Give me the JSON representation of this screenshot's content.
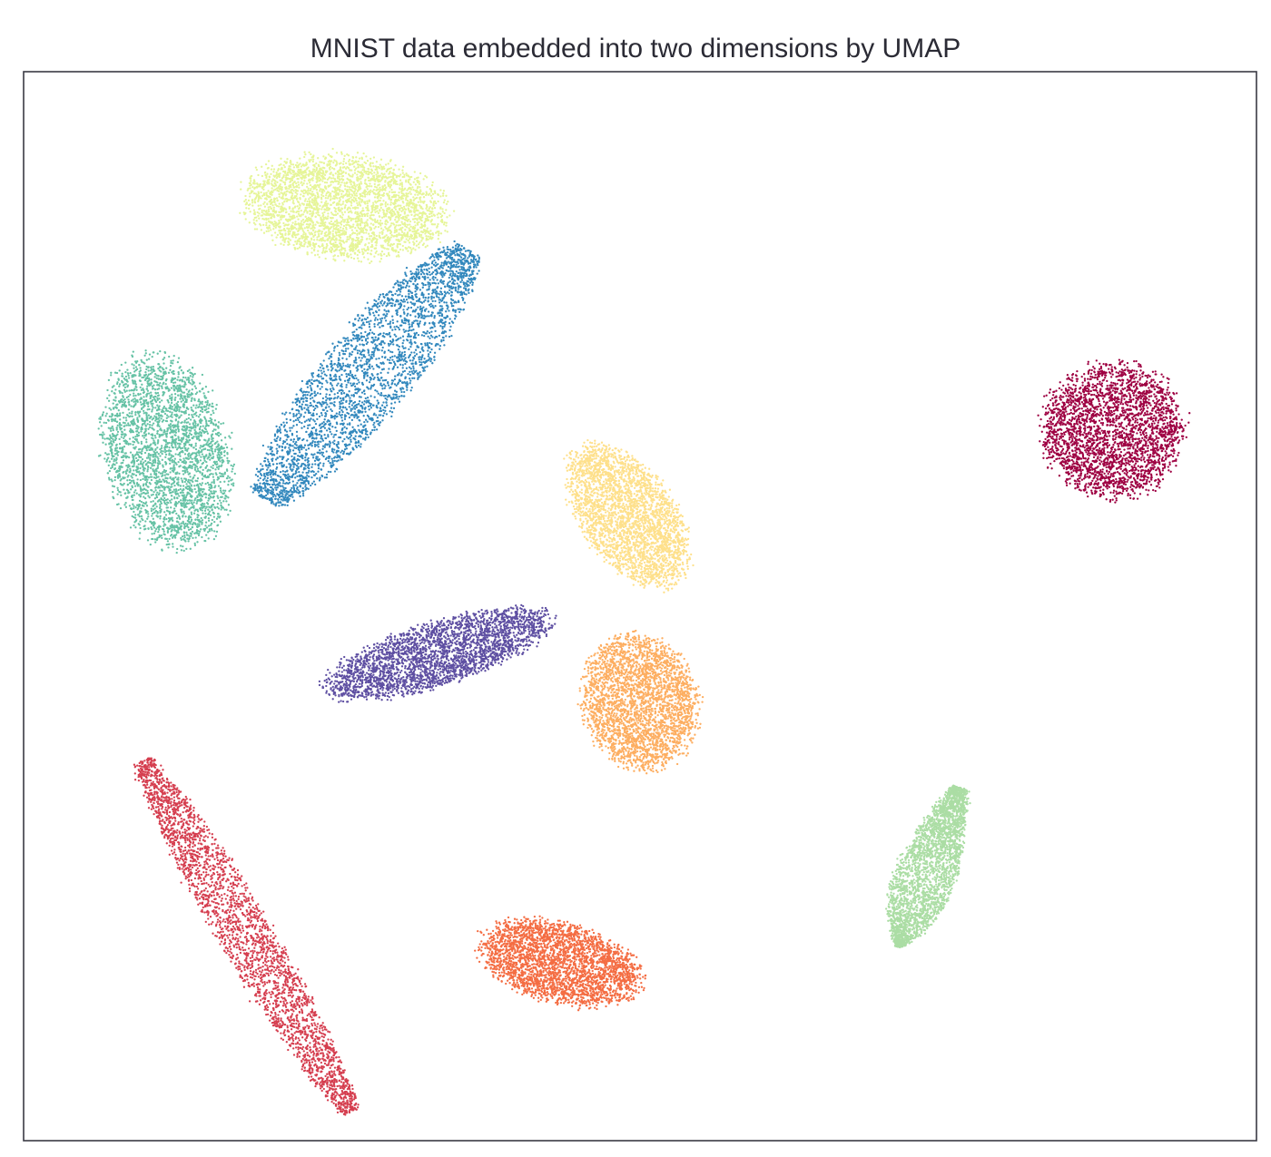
{
  "chart_data": {
    "type": "scatter",
    "title": "MNIST data embedded into two dimensions by UMAP",
    "xlabel": "",
    "ylabel": "",
    "xlim": [
      0,
      100
    ],
    "ylim": [
      0,
      100
    ],
    "grid": false,
    "legend": "none",
    "axes_ticks": "none",
    "series": [
      {
        "color": "#9e0142",
        "points_estimated": 6900,
        "cluster": {
          "center": [
            88.5,
            66.5
          ],
          "spread": [
            6.0,
            6.5
          ],
          "angle_deg": 0,
          "shape": "ellipse"
        }
      },
      {
        "color": "#d53e4f",
        "points_estimated": 7000,
        "cluster": {
          "from": [
            9.5,
            35.5
          ],
          "to": [
            26.5,
            2.5
          ],
          "half_width": 2.2,
          "shape": "strip"
        }
      },
      {
        "color": "#f46d43",
        "points_estimated": 7000,
        "cluster": {
          "center": [
            43.5,
            16.5
          ],
          "spread": [
            7.0,
            3.8
          ],
          "angle_deg": -18,
          "shape": "ellipse"
        }
      },
      {
        "color": "#fdae61",
        "points_estimated": 7100,
        "cluster": {
          "center": [
            50.0,
            41.0
          ],
          "spread": [
            4.8,
            6.5
          ],
          "angle_deg": 10,
          "shape": "ellipse"
        }
      },
      {
        "color": "#fee08b",
        "points_estimated": 7000,
        "cluster": {
          "center": [
            49.0,
            58.5
          ],
          "spread": [
            4.0,
            7.5
          ],
          "angle_deg": 30,
          "shape": "ellipse"
        }
      },
      {
        "color": "#e6f598",
        "points_estimated": 7300,
        "cluster": {
          "center": [
            26.0,
            87.5
          ],
          "spread": [
            8.5,
            5.0
          ],
          "angle_deg": -8,
          "shape": "ellipse"
        }
      },
      {
        "color": "#abdda4",
        "points_estimated": 6800,
        "cluster": {
          "from": [
            76.0,
            33.0
          ],
          "to": [
            71.0,
            18.0
          ],
          "half_width": 3.8,
          "shape": "teardrop"
        }
      },
      {
        "color": "#66c2a5",
        "points_estimated": 6900,
        "cluster": {
          "center": [
            11.5,
            64.5
          ],
          "spread": [
            5.2,
            9.5
          ],
          "angle_deg": 10,
          "shape": "ellipse"
        }
      },
      {
        "color": "#3288bd",
        "points_estimated": 7400,
        "cluster": {
          "from": [
            19.5,
            60.0
          ],
          "to": [
            36.0,
            83.5
          ],
          "half_width": 3.8,
          "shape": "strip"
        }
      },
      {
        "color": "#5e4fa2",
        "points_estimated": 7000,
        "cluster": {
          "center": [
            33.5,
            45.5
          ],
          "spread": [
            10.0,
            3.0
          ],
          "angle_deg": 20,
          "shape": "ellipse"
        }
      }
    ]
  }
}
